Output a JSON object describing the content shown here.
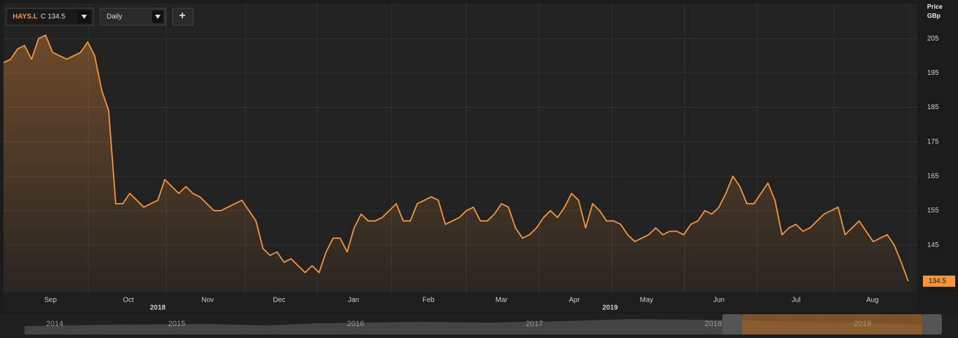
{
  "chart_data": {
    "type": "line",
    "ticker": "HAYS.L",
    "quote": "C 134.5",
    "interval": "Daily",
    "add_button": "+",
    "y_axis_title": "Price",
    "y_axis_unit": "GBp",
    "series": [
      {
        "name": "HAYS.L",
        "color": "#f7963a",
        "values": [
          198,
          199,
          202,
          203,
          199,
          205,
          206,
          201,
          200,
          199,
          200,
          201,
          204,
          200,
          190,
          184,
          157,
          157,
          160,
          158,
          156,
          157,
          158,
          164,
          162,
          160,
          162,
          160,
          159,
          157,
          155,
          155,
          156,
          157,
          158,
          155,
          152,
          144,
          142,
          143,
          140,
          141,
          139,
          137,
          139,
          137,
          143,
          147,
          147,
          143,
          150,
          154,
          152,
          152,
          153,
          155,
          157,
          152,
          152,
          157,
          158,
          159,
          158,
          151,
          152,
          153,
          155,
          156,
          152,
          152,
          154,
          157,
          156,
          150,
          147,
          148,
          150,
          153,
          155,
          153,
          156,
          160,
          158,
          150,
          157,
          155,
          152,
          152,
          151,
          148,
          146,
          147,
          148,
          150,
          148,
          149,
          149,
          148,
          151,
          152,
          155,
          154,
          156,
          160,
          165,
          162,
          157,
          157,
          160,
          163,
          158,
          148,
          150,
          151,
          149,
          150,
          152,
          154,
          155,
          156,
          148,
          150,
          152,
          149,
          146,
          147,
          148,
          145,
          140,
          134.5
        ]
      }
    ],
    "xlim": [
      0,
      130.3
    ],
    "xticks": [
      {
        "value": 6.7,
        "label": "Sep"
      },
      {
        "value": 17.8,
        "label": "Oct"
      },
      {
        "value": 29.1,
        "label": "Nov"
      },
      {
        "value": 39.3,
        "label": "Dec"
      },
      {
        "value": 49.9,
        "label": "Jan"
      },
      {
        "value": 60.6,
        "label": "Feb"
      },
      {
        "value": 71,
        "label": "Mar"
      },
      {
        "value": 81.4,
        "label": "Apr"
      },
      {
        "value": 91.7,
        "label": "May"
      },
      {
        "value": 102,
        "label": "Jun"
      },
      {
        "value": 113,
        "label": "Jul"
      },
      {
        "value": 123.9,
        "label": "Aug"
      }
    ],
    "year_ticks": [
      {
        "value": 22,
        "label": "2018"
      },
      {
        "value": 86.5,
        "label": "2019"
      }
    ],
    "ylim": [
      131.2,
      215.2
    ],
    "yticks": [
      145,
      155,
      165,
      175,
      185,
      195,
      205
    ],
    "grid": true,
    "navigator_labels": [
      "2014",
      "2015",
      "2016",
      "2017",
      "2018",
      "2019"
    ]
  }
}
